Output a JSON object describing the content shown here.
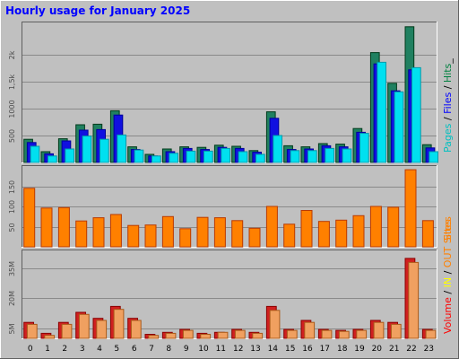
{
  "chart_data": {
    "type": "bar",
    "title": "Hourly usage for January 2025",
    "categories": [
      "0",
      "1",
      "2",
      "3",
      "4",
      "5",
      "6",
      "7",
      "8",
      "9",
      "10",
      "11",
      "12",
      "13",
      "14",
      "15",
      "16",
      "17",
      "18",
      "19",
      "20",
      "21",
      "22",
      "23"
    ],
    "panels": [
      {
        "id": "requests",
        "yticks": [
          {
            "v": 500,
            "label": "500"
          },
          {
            "v": 1000,
            "label": "1000"
          },
          {
            "v": 1500,
            "label": "1,5k"
          },
          {
            "v": 2000,
            "label": "2k"
          }
        ],
        "ylim": [
          0,
          2600
        ],
        "legend": [
          {
            "text": "Pages",
            "color": "#00c0c0"
          },
          {
            "text": " / ",
            "color": "#000000"
          },
          {
            "text": "Files",
            "color": "#0000ff"
          },
          {
            "text": " / ",
            "color": "#000000"
          },
          {
            "text": "Hits",
            "color": "#008040"
          },
          {
            "text": "_",
            "color": "#000000"
          }
        ],
        "series": [
          {
            "name": "Hits",
            "color": "#208060",
            "values": [
              430,
              200,
              440,
              700,
              710,
              960,
              290,
              150,
              250,
              290,
              280,
              320,
              300,
              220,
              940,
              310,
              290,
              350,
              340,
              630,
              2040,
              1470,
              2520,
              330
            ]
          },
          {
            "name": "Files",
            "color": "#1010e0",
            "values": [
              370,
              160,
              400,
              600,
              610,
              880,
              240,
              120,
              200,
              260,
              240,
              280,
              260,
              190,
              820,
              240,
              250,
              310,
              290,
              560,
              1830,
              1330,
              1720,
              270
            ]
          },
          {
            "name": "Pages",
            "color": "#00e0f0",
            "values": [
              300,
              120,
              250,
              490,
              430,
              510,
              230,
              120,
              170,
              210,
              210,
              260,
              200,
              150,
              500,
              220,
              220,
              260,
              250,
              540,
              1860,
              1310,
              1760,
              200
            ]
          }
        ]
      },
      {
        "id": "sites",
        "yticks": [
          {
            "v": 50,
            "label": "50"
          },
          {
            "v": 100,
            "label": "100"
          },
          {
            "v": 150,
            "label": "150"
          }
        ],
        "ylim": [
          0,
          200
        ],
        "legend": [
          {
            "text": "Sites",
            "color": "#ff8000"
          }
        ],
        "series": [
          {
            "name": "Sites",
            "color": "#ff8000",
            "values": [
              145,
              96,
              97,
              64,
              72,
              80,
              53,
              54,
              75,
              45,
              73,
              72,
              65,
              46,
              100,
              56,
              90,
              63,
              66,
              77,
              100,
              98,
              191,
              65
            ]
          }
        ]
      },
      {
        "id": "volume",
        "yticks": [
          {
            "v": 5,
            "label": "5M"
          },
          {
            "v": 20,
            "label": "20M"
          },
          {
            "v": 35,
            "label": "35M"
          }
        ],
        "ylim": [
          0,
          44
        ],
        "legend": [
          {
            "text": "Volume",
            "color": "#ff0000"
          },
          {
            "text": " / ",
            "color": "#000000"
          },
          {
            "text": "IN",
            "color": "#ffff00"
          },
          {
            "text": " / ",
            "color": "#000000"
          },
          {
            "text": "OUT",
            "color": "#ff8000"
          },
          {
            "text": " ",
            "color": "#000000"
          },
          {
            "text": "Sites",
            "color": "#ff8000"
          }
        ],
        "series": [
          {
            "name": "Volume",
            "color": "#d02020",
            "values": [
              8,
              2.5,
              8,
              13,
              10,
              16,
              10,
              2,
              3,
              4.5,
              2.5,
              3,
              4.5,
              3,
              16,
              4.5,
              9,
              4.5,
              4,
              4.5,
              9,
              8,
              40,
              4.5
            ]
          },
          {
            "name": "OUT",
            "color": "#f0a060",
            "values": [
              7,
              1.5,
              7,
              12,
              9,
              14.5,
              9,
              1.5,
              2.5,
              4,
              2,
              3,
              4,
              2.5,
              14,
              4,
              8,
              4,
              3.5,
              4,
              8,
              7,
              38,
              4
            ]
          }
        ]
      }
    ]
  }
}
